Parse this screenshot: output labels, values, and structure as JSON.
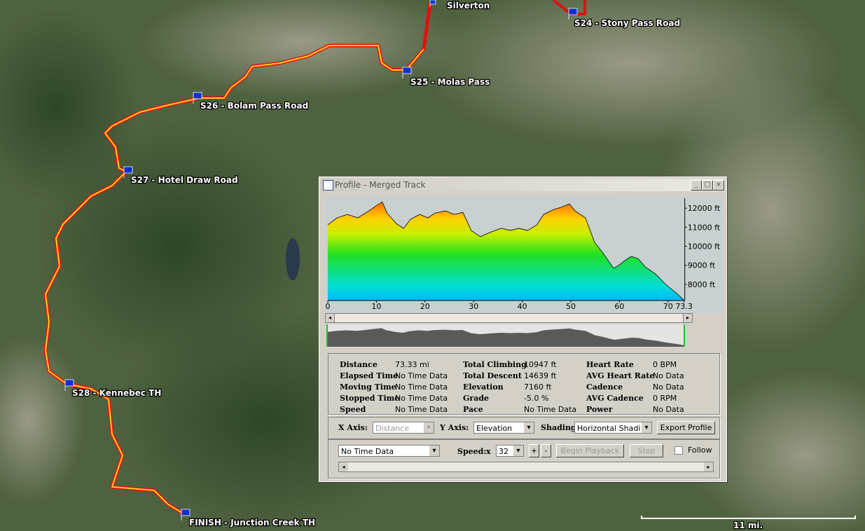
{
  "map": {
    "labels": [
      "Silverton",
      "S24 - Stony Pass Road",
      "S25 - Molas Pass",
      "S26 - Bolam Pass Road",
      "S27 - Hotel Draw Road",
      "S28 - Kennebec TH",
      "FINISH - Junction Creek TH"
    ],
    "scale": "11 mi."
  },
  "window": {
    "title": "Profile - Merged Track"
  },
  "profile": {
    "type": "area",
    "x": [
      0,
      1.9,
      4.0,
      6.2,
      8.4,
      10.1,
      11.2,
      12.2,
      14.1,
      15.6,
      17.0,
      18.9,
      20.6,
      22.0,
      24.2,
      26.1,
      27.8,
      29.5,
      31.4,
      33.6,
      35.7,
      37.6,
      39.3,
      41.1,
      43.0,
      44.4,
      46.5,
      48.0,
      49.7,
      50.9,
      53.0,
      54.9,
      56.6,
      58.8,
      59.8,
      60.9,
      62.4,
      63.8,
      65.3,
      67.4,
      69.5,
      71.8,
      73.3
    ],
    "values": [
      11120,
      11490,
      11670,
      11490,
      11850,
      12150,
      12330,
      11740,
      11190,
      10940,
      11410,
      11670,
      11490,
      11740,
      11850,
      11670,
      11780,
      10830,
      10500,
      10750,
      10940,
      10830,
      10940,
      10830,
      11120,
      11670,
      11930,
      12040,
      12220,
      11850,
      11490,
      10200,
      9650,
      8840,
      8990,
      9210,
      9470,
      9360,
      8920,
      8550,
      8000,
      7520,
      7160
    ],
    "xlim": [
      0,
      73.3
    ],
    "xticks": [
      0,
      10,
      20,
      30,
      40,
      50,
      60,
      70,
      73.3
    ],
    "ylim": [
      7150,
      12520
    ],
    "yticks": [
      {
        "value": 8000,
        "label": "8000 ft"
      },
      {
        "value": 9000,
        "label": "9000 ft"
      },
      {
        "value": 10000,
        "label": "10000 ft"
      },
      {
        "value": 11000,
        "label": "11000 ft"
      },
      {
        "value": 12000,
        "label": "12000 ft"
      }
    ]
  },
  "stats": [
    [
      {
        "label": "Distance",
        "value": "73.33 mi"
      },
      {
        "label": "Total Climbing",
        "value": "10947 ft"
      },
      {
        "label": "Heart Rate",
        "value": "0 BPM"
      }
    ],
    [
      {
        "label": "Elapsed Time",
        "value": "No Time Data"
      },
      {
        "label": "Total Descent",
        "value": "14639 ft"
      },
      {
        "label": "AVG Heart Rate",
        "value": "No Data"
      }
    ],
    [
      {
        "label": "Moving Time",
        "value": "No Time Data"
      },
      {
        "label": "Elevation",
        "value": "7160 ft"
      },
      {
        "label": "Cadence",
        "value": "No Data"
      }
    ],
    [
      {
        "label": "Stopped Time",
        "value": "No Time Data"
      },
      {
        "label": "Grade",
        "value": "-5.0 %"
      },
      {
        "label": "AVG Cadence",
        "value": "0 RPM"
      }
    ],
    [
      {
        "label": "Speed",
        "value": "No Time Data"
      },
      {
        "label": "Pace",
        "value": "No Time Data"
      },
      {
        "label": "Power",
        "value": "No Data"
      }
    ]
  ],
  "controls": {
    "x_axis_label": "X Axis:",
    "x_axis": "Distance",
    "y_axis_label": "Y Axis:",
    "y_axis": "Elevation",
    "shading_label": "Shading:",
    "shading": "Horizontal Shading",
    "export": "Export Profile",
    "time": "No Time Data",
    "speed_label": "Speed:",
    "speed_x": "x",
    "speed": "32",
    "plus": "+",
    "minus": "-",
    "play": "Begin Playback",
    "stop": "Stop",
    "follow": "Follow"
  }
}
